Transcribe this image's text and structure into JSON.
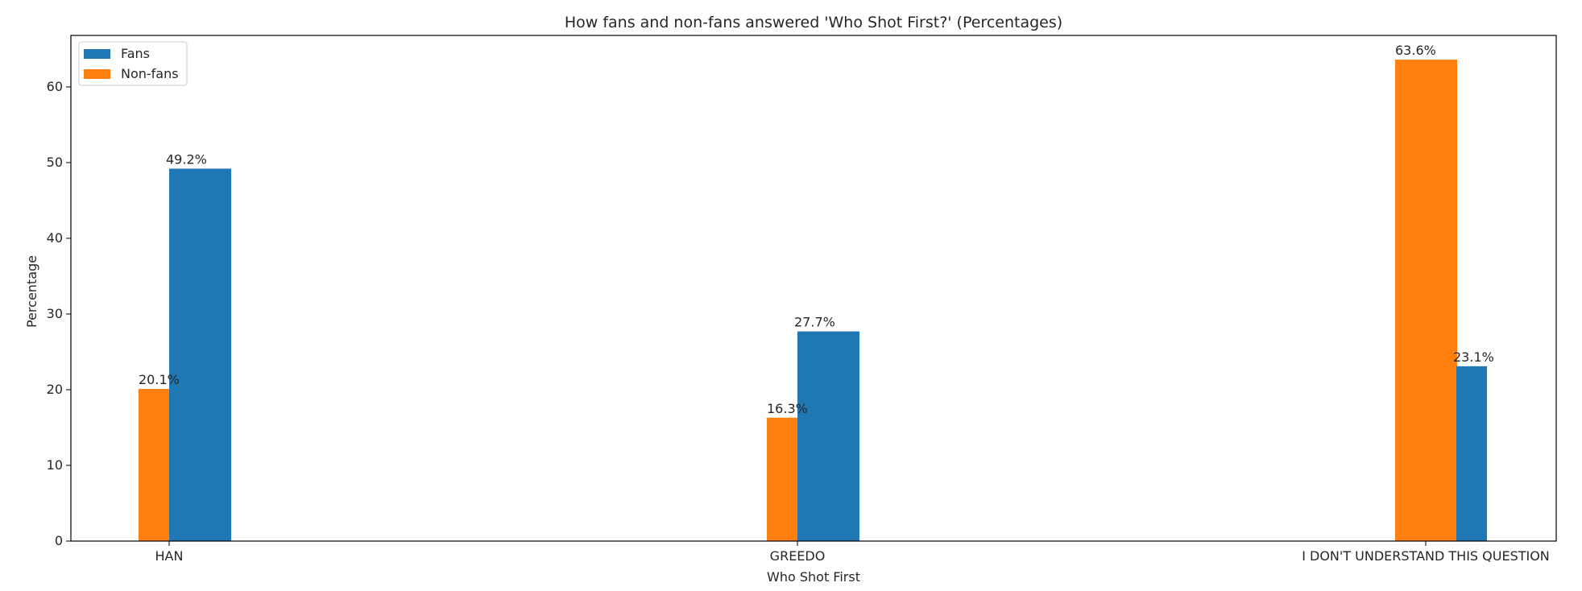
{
  "chart_data": {
    "type": "bar",
    "title": "How fans and non-fans answered 'Who Shot First?' (Percentages)",
    "xlabel": "Who Shot First",
    "ylabel": "Percentage",
    "categories": [
      "HAN",
      "GREEDO",
      "I DON'T UNDERSTAND THIS QUESTION"
    ],
    "series": [
      {
        "name": "Fans",
        "color": "#1f77b4",
        "values": [
          49.2,
          27.7,
          23.1
        ],
        "labels": [
          "49.2%",
          "27.7%",
          "23.1%"
        ]
      },
      {
        "name": "Non-fans",
        "color": "#ff7f0e",
        "values": [
          20.1,
          16.3,
          63.6
        ],
        "labels": [
          "20.1%",
          "16.3%",
          "63.6%"
        ]
      }
    ],
    "ylim": [
      0,
      66.8
    ],
    "yticks": [
      0,
      10,
      20,
      30,
      40,
      50,
      60
    ],
    "grid": false,
    "legend": "top-left"
  }
}
